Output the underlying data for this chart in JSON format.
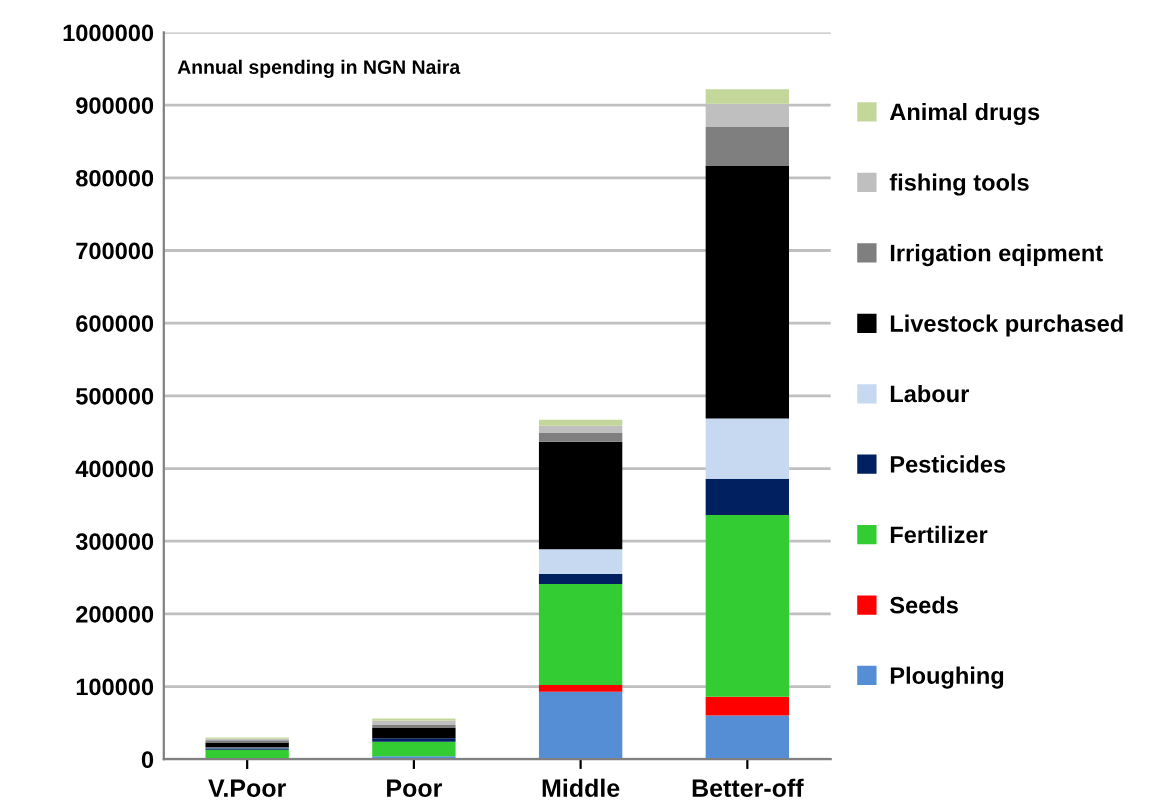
{
  "chart_data": {
    "type": "bar",
    "stacked": true,
    "ylabel": "Annual spending in NGN Naira",
    "categories": [
      "V.Poor",
      "Poor",
      "Middle",
      "Better-off"
    ],
    "series": [
      {
        "name": "Ploughing",
        "color": "#558ed5",
        "values": [
          0,
          4000,
          93000,
          60000
        ]
      },
      {
        "name": "Seeds",
        "color": "#ff0000",
        "values": [
          0,
          0,
          9000,
          26000
        ]
      },
      {
        "name": "Fertilizer",
        "color": "#33cc33",
        "values": [
          13000,
          20000,
          139000,
          250000
        ]
      },
      {
        "name": "Pesticides",
        "color": "#002060",
        "values": [
          2000,
          5000,
          14000,
          50000
        ]
      },
      {
        "name": "Labour",
        "color": "#c6d9f1",
        "values": [
          1000,
          null,
          34000,
          83000
        ]
      },
      {
        "name": "Livestock purchased",
        "color": "#000000",
        "values": [
          7000,
          14000,
          148000,
          348000
        ]
      },
      {
        "name": "Irrigation eqipment",
        "color": "#7f7f7f",
        "values": [
          3000,
          4000,
          12000,
          53000
        ]
      },
      {
        "name": "fishing tools",
        "color": "#bfbfbf",
        "values": [
          2000,
          6000,
          10000,
          32000
        ]
      },
      {
        "name": "Animal drugs",
        "color": "#c4d79b",
        "values": [
          2000,
          3000,
          8000,
          20000
        ]
      }
    ],
    "ylim": [
      0,
      1000000
    ],
    "yticks": [
      0,
      100000,
      200000,
      300000,
      400000,
      500000,
      600000,
      700000,
      800000,
      900000,
      1000000
    ],
    "grid": "y",
    "legend": "right"
  }
}
